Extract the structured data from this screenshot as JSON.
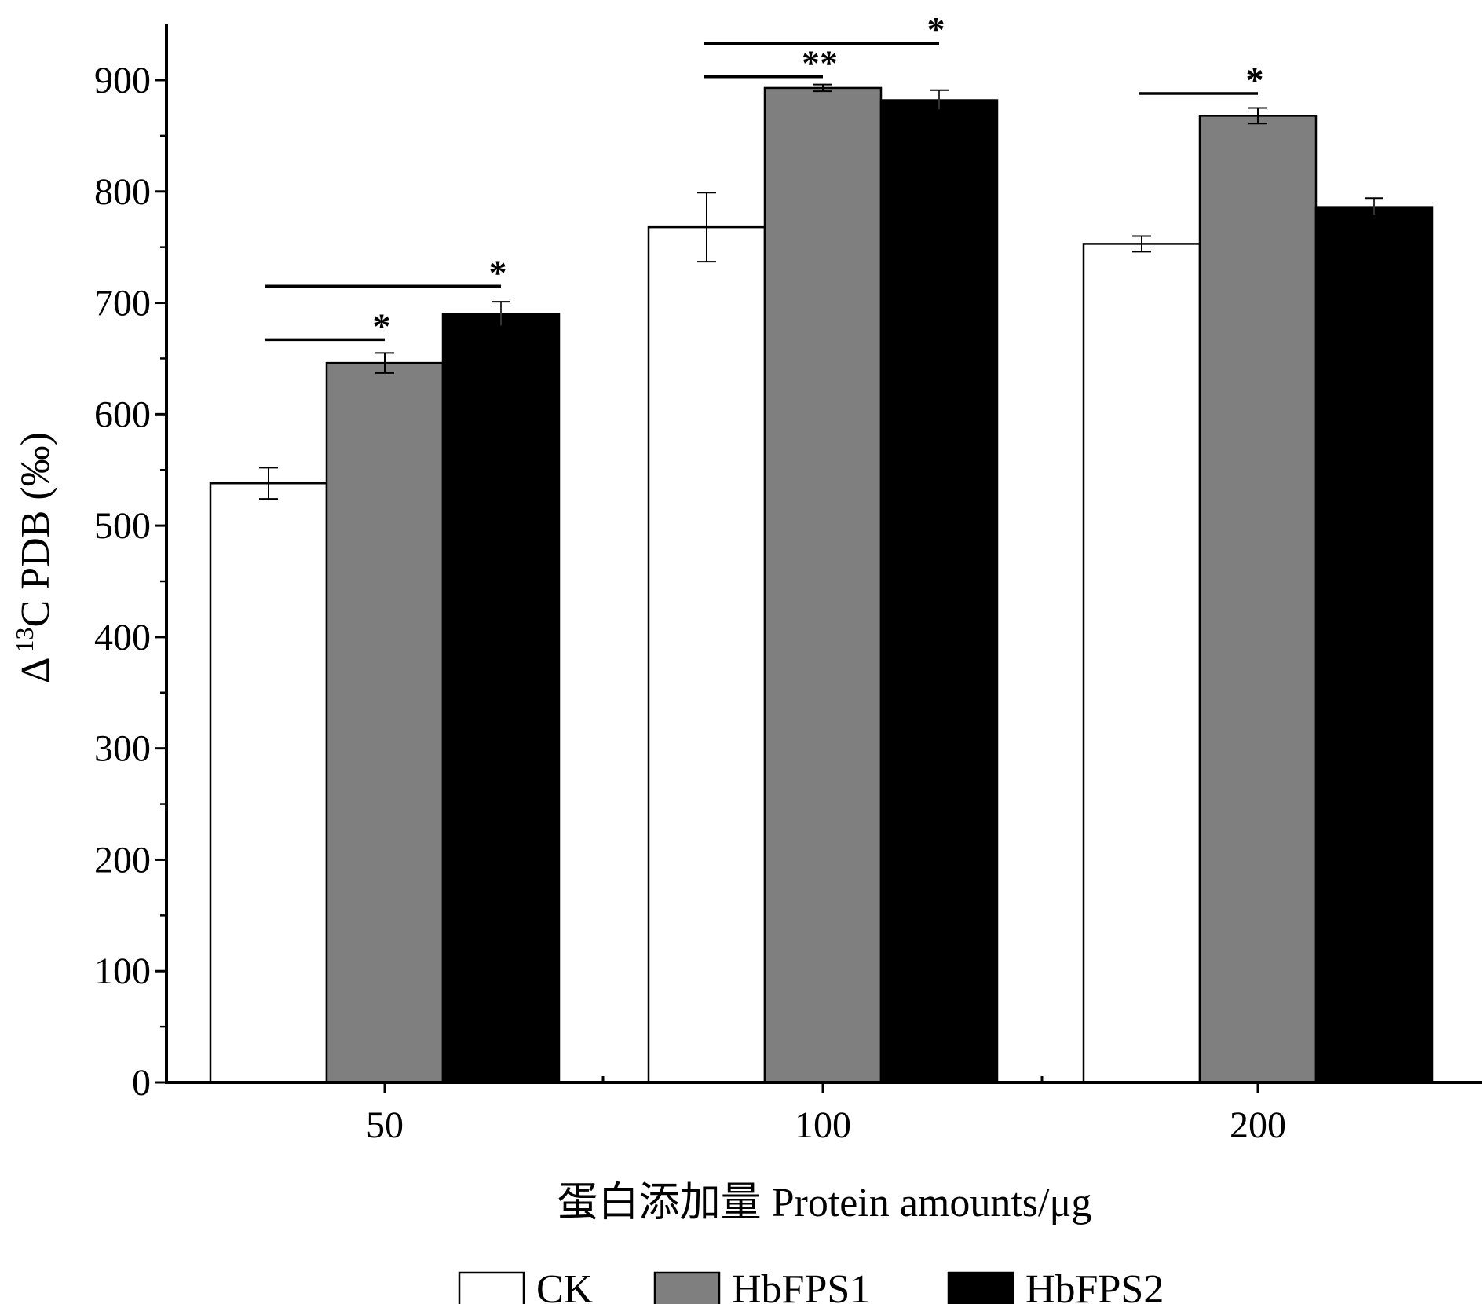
{
  "chart_data": {
    "type": "bar",
    "categories": [
      "50",
      "100",
      "200"
    ],
    "series": [
      {
        "name": "CK",
        "color": "#ffffff",
        "values": [
          538,
          768,
          753
        ],
        "errors": [
          14,
          31,
          7
        ]
      },
      {
        "name": "HbFPS1",
        "color": "#7f7f7f",
        "values": [
          646,
          893,
          868
        ],
        "errors": [
          9,
          3,
          7
        ]
      },
      {
        "name": "HbFPS2",
        "color": "#000000",
        "values": [
          690,
          882,
          786
        ],
        "errors": [
          11,
          9,
          8
        ]
      }
    ],
    "ylim": [
      0,
      950
    ],
    "yticks": [
      0,
      100,
      200,
      300,
      400,
      500,
      600,
      700,
      800,
      900
    ],
    "ylabel": {
      "prefix": "Δ",
      "sup": "13",
      "rest": "C PDB (‰)"
    },
    "xlabel": "蛋白添加量  Protein amounts/μg",
    "legend_position": "bottom",
    "significance": [
      {
        "category": 0,
        "from_series": 0,
        "to_series": 1,
        "label": "*",
        "y": 667
      },
      {
        "category": 0,
        "from_series": 0,
        "to_series": 2,
        "label": "*",
        "y": 715
      },
      {
        "category": 1,
        "from_series": 0,
        "to_series": 1,
        "label": "**",
        "y": 903
      },
      {
        "category": 1,
        "from_series": 0,
        "to_series": 2,
        "label": "*",
        "y": 933
      },
      {
        "category": 2,
        "from_series": 0,
        "to_series": 1,
        "label": "*",
        "y": 888
      }
    ]
  }
}
